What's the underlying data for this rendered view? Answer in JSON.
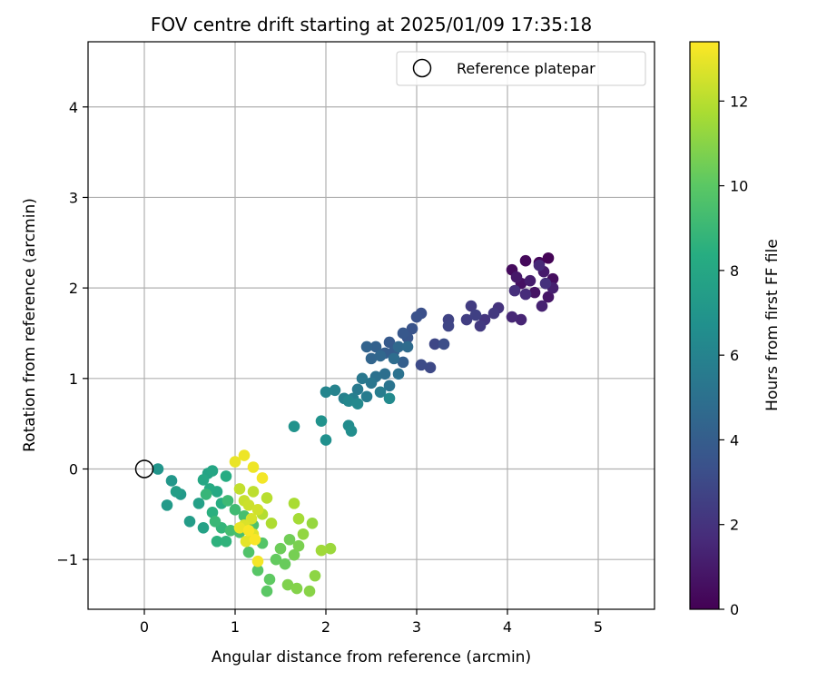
{
  "chart_data": {
    "type": "scatter",
    "title": "FOV centre drift starting at 2025/01/09 17:35:18",
    "xlabel": "Angular distance from reference (arcmin)",
    "ylabel": "Rotation from reference (arcmin)",
    "xlim": [
      -0.62,
      5.62
    ],
    "ylim": [
      -1.55,
      4.72
    ],
    "xticks": [
      0,
      1,
      2,
      3,
      4,
      5
    ],
    "yticks": [
      -1,
      0,
      1,
      2,
      3,
      4
    ],
    "grid": true,
    "legend": {
      "placement": "top-right",
      "entries": [
        "Reference platepar"
      ]
    },
    "reference_point": {
      "x": 0,
      "y": 0
    },
    "colorbar": {
      "label": "Hours from first FF file",
      "colormap": "viridis",
      "range": [
        0,
        13.4
      ],
      "ticks": [
        0,
        2,
        4,
        6,
        8,
        10,
        12
      ],
      "colors": [
        "#440154",
        "#472c7a",
        "#3b518b",
        "#2c718e",
        "#21908d",
        "#27ad81",
        "#5cc863",
        "#aadc32",
        "#fde725"
      ]
    },
    "series": [
      {
        "color_value": "Hours from first FF file",
        "points": [
          [
            4.45,
            2.33,
            0.1
          ],
          [
            4.35,
            2.28,
            0.2
          ],
          [
            4.2,
            2.3,
            0.3
          ],
          [
            4.05,
            2.2,
            0.4
          ],
          [
            4.5,
            2.1,
            0.5
          ],
          [
            4.15,
            2.05,
            0.6
          ],
          [
            4.3,
            1.95,
            0.7
          ],
          [
            4.45,
            1.9,
            0.8
          ],
          [
            4.1,
            2.12,
            0.9
          ],
          [
            4.4,
            2.18,
            1.0
          ],
          [
            4.25,
            2.08,
            1.1
          ],
          [
            4.5,
            2.0,
            1.2
          ],
          [
            4.38,
            1.8,
            1.3
          ],
          [
            4.15,
            1.65,
            1.4
          ],
          [
            4.05,
            1.68,
            1.5
          ],
          [
            4.35,
            2.25,
            1.6
          ],
          [
            4.2,
            1.93,
            1.7
          ],
          [
            4.08,
            1.97,
            1.8
          ],
          [
            4.42,
            2.05,
            1.9
          ],
          [
            3.9,
            1.78,
            2.0
          ],
          [
            3.75,
            1.65,
            2.1
          ],
          [
            3.85,
            1.72,
            2.2
          ],
          [
            3.7,
            1.58,
            2.3
          ],
          [
            3.6,
            1.8,
            2.4
          ],
          [
            3.55,
            1.65,
            2.5
          ],
          [
            3.65,
            1.7,
            2.6
          ],
          [
            3.35,
            1.65,
            2.7
          ],
          [
            3.35,
            1.58,
            2.8
          ],
          [
            3.2,
            1.38,
            2.9
          ],
          [
            3.15,
            1.12,
            3.0
          ],
          [
            3.05,
            1.15,
            3.1
          ],
          [
            3.3,
            1.38,
            3.2
          ],
          [
            3.05,
            1.72,
            3.3
          ],
          [
            3.0,
            1.68,
            3.4
          ],
          [
            2.95,
            1.55,
            3.5
          ],
          [
            2.9,
            1.45,
            3.6
          ],
          [
            2.85,
            1.5,
            3.7
          ],
          [
            2.7,
            1.4,
            3.8
          ],
          [
            2.75,
            1.3,
            3.9
          ],
          [
            2.65,
            1.28,
            4.0
          ],
          [
            2.85,
            1.18,
            4.1
          ],
          [
            2.55,
            1.35,
            4.2
          ],
          [
            2.45,
            1.35,
            4.3
          ],
          [
            2.5,
            1.22,
            4.4
          ],
          [
            2.6,
            1.25,
            4.5
          ],
          [
            2.8,
            1.35,
            4.6
          ],
          [
            2.9,
            1.35,
            4.7
          ],
          [
            2.75,
            1.22,
            4.8
          ],
          [
            2.65,
            1.05,
            4.9
          ],
          [
            2.55,
            1.02,
            5.0
          ],
          [
            2.8,
            1.05,
            5.1
          ],
          [
            2.7,
            0.92,
            5.2
          ],
          [
            2.5,
            0.95,
            5.3
          ],
          [
            2.4,
            1.0,
            5.4
          ],
          [
            2.35,
            0.88,
            5.5
          ],
          [
            2.45,
            0.8,
            5.6
          ],
          [
            2.6,
            0.85,
            5.7
          ],
          [
            2.3,
            0.78,
            5.8
          ],
          [
            2.2,
            0.78,
            5.9
          ],
          [
            2.1,
            0.87,
            6.0
          ],
          [
            2.0,
            0.85,
            6.1
          ],
          [
            2.25,
            0.75,
            6.2
          ],
          [
            2.35,
            0.72,
            6.3
          ],
          [
            2.7,
            0.78,
            6.4
          ],
          [
            2.25,
            0.48,
            6.5
          ],
          [
            2.28,
            0.42,
            6.6
          ],
          [
            2.0,
            0.32,
            6.7
          ],
          [
            1.95,
            0.53,
            6.8
          ],
          [
            1.65,
            0.47,
            6.9
          ],
          [
            0.15,
            0.0,
            7.0
          ],
          [
            0.3,
            -0.13,
            7.1
          ],
          [
            0.4,
            -0.28,
            7.2
          ],
          [
            0.25,
            -0.4,
            7.3
          ],
          [
            0.5,
            -0.58,
            7.4
          ],
          [
            0.35,
            -0.25,
            7.5
          ],
          [
            0.6,
            -0.38,
            7.6
          ],
          [
            0.65,
            -0.65,
            7.7
          ],
          [
            0.7,
            -0.05,
            7.8
          ],
          [
            0.75,
            -0.02,
            7.9
          ],
          [
            0.65,
            -0.12,
            8.0
          ],
          [
            0.8,
            -0.25,
            8.1
          ],
          [
            0.72,
            -0.22,
            8.2
          ],
          [
            0.9,
            -0.08,
            8.3
          ],
          [
            0.85,
            -0.38,
            8.4
          ],
          [
            0.75,
            -0.48,
            8.5
          ],
          [
            0.8,
            -0.8,
            8.6
          ],
          [
            0.9,
            -0.8,
            8.7
          ],
          [
            0.85,
            -0.65,
            8.8
          ],
          [
            0.68,
            -0.28,
            8.9
          ],
          [
            0.78,
            -0.58,
            9.0
          ],
          [
            0.92,
            -0.35,
            9.1
          ],
          [
            1.0,
            -0.45,
            9.2
          ],
          [
            0.95,
            -0.68,
            9.3
          ],
          [
            1.1,
            -0.52,
            9.4
          ],
          [
            1.05,
            -0.7,
            9.5
          ],
          [
            1.2,
            -0.62,
            9.6
          ],
          [
            1.15,
            -0.92,
            9.7
          ],
          [
            1.3,
            -0.82,
            9.8
          ],
          [
            1.25,
            -1.12,
            9.9
          ],
          [
            1.35,
            -1.35,
            10.0
          ],
          [
            1.38,
            -1.22,
            10.1
          ],
          [
            1.45,
            -1.0,
            10.2
          ],
          [
            1.55,
            -1.05,
            10.3
          ],
          [
            1.5,
            -0.88,
            10.4
          ],
          [
            1.6,
            -0.78,
            10.5
          ],
          [
            1.65,
            -0.95,
            10.6
          ],
          [
            1.7,
            -0.85,
            10.7
          ],
          [
            1.58,
            -1.28,
            10.8
          ],
          [
            1.68,
            -1.32,
            10.9
          ],
          [
            1.82,
            -1.35,
            11.0
          ],
          [
            1.88,
            -1.18,
            11.1
          ],
          [
            1.75,
            -0.72,
            11.2
          ],
          [
            1.85,
            -0.6,
            11.3
          ],
          [
            2.05,
            -0.88,
            11.4
          ],
          [
            1.95,
            -0.9,
            11.5
          ],
          [
            1.7,
            -0.55,
            11.6
          ],
          [
            1.65,
            -0.38,
            11.7
          ],
          [
            1.4,
            -0.6,
            11.8
          ],
          [
            1.3,
            -0.5,
            11.9
          ],
          [
            1.35,
            -0.32,
            12.0
          ],
          [
            1.2,
            -0.25,
            12.1
          ],
          [
            1.05,
            -0.22,
            12.2
          ],
          [
            1.1,
            -0.35,
            12.3
          ],
          [
            1.15,
            -0.4,
            12.4
          ],
          [
            1.25,
            -0.45,
            12.5
          ],
          [
            1.18,
            -0.55,
            12.6
          ],
          [
            1.1,
            -0.62,
            12.7
          ],
          [
            1.2,
            -0.72,
            12.8
          ],
          [
            1.12,
            -0.8,
            12.9
          ],
          [
            1.05,
            -0.65,
            13.0
          ],
          [
            1.0,
            0.08,
            13.0
          ],
          [
            1.1,
            0.15,
            13.1
          ],
          [
            1.2,
            0.02,
            13.1
          ],
          [
            1.3,
            -0.1,
            13.2
          ],
          [
            1.25,
            -1.02,
            13.2
          ],
          [
            1.15,
            -0.68,
            13.3
          ],
          [
            1.22,
            -0.78,
            13.3
          ]
        ]
      }
    ]
  }
}
